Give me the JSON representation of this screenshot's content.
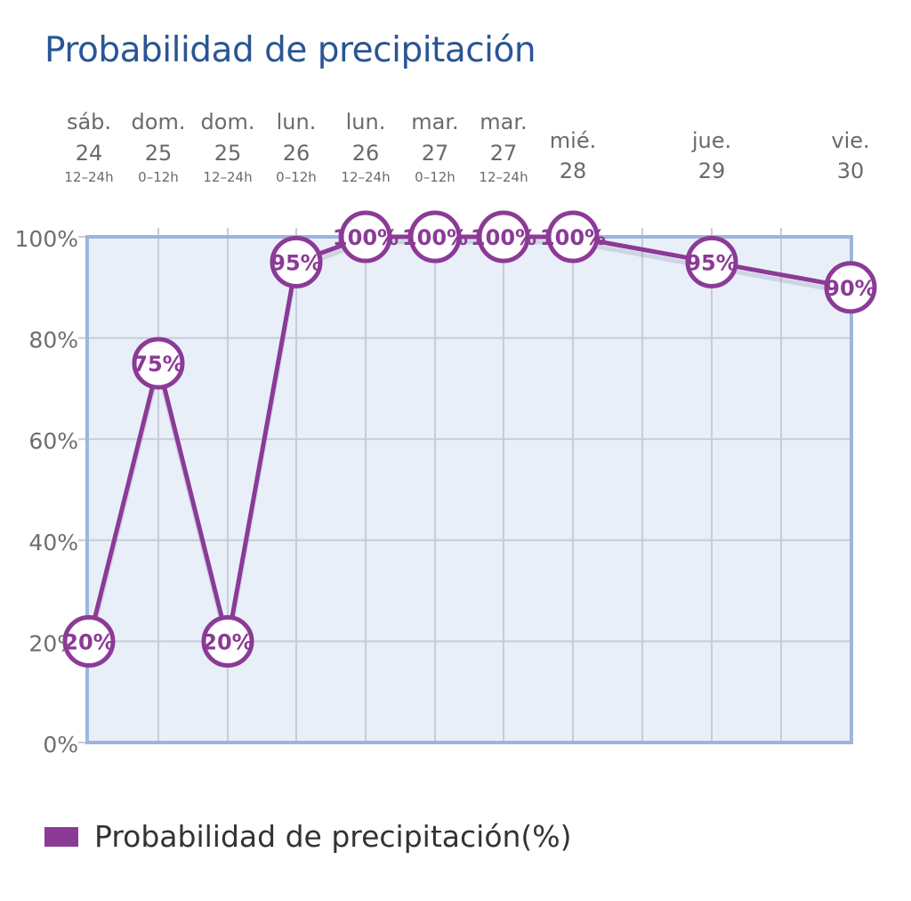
{
  "title": "Probabilidad de precipitación",
  "chart_data": {
    "type": "line",
    "title": "Probabilidad de precipitación",
    "columns": [
      {
        "day": "sáb.",
        "date": "24",
        "period": "12–24h"
      },
      {
        "day": "dom.",
        "date": "25",
        "period": "0–12h"
      },
      {
        "day": "dom.",
        "date": "25",
        "period": "12–24h"
      },
      {
        "day": "lun.",
        "date": "26",
        "period": "0–12h"
      },
      {
        "day": "lun.",
        "date": "26",
        "period": "12–24h"
      },
      {
        "day": "mar.",
        "date": "27",
        "period": "0–12h"
      },
      {
        "day": "mar.",
        "date": "27",
        "period": "12–24h"
      },
      {
        "day": "mié.",
        "date": "28",
        "period": ""
      },
      {
        "day": "jue.",
        "date": "29",
        "period": ""
      },
      {
        "day": "vie.",
        "date": "30",
        "period": ""
      }
    ],
    "series": [
      {
        "name": "Probabilidad de precipitación(%)",
        "color": "#8b3a96",
        "values": [
          20,
          75,
          20,
          95,
          100,
          100,
          100,
          100,
          95,
          90
        ],
        "labels": [
          "20%",
          "75%",
          "20%",
          "95%",
          "100%",
          "100%",
          "100%",
          "100%",
          "95%",
          "90%"
        ]
      }
    ],
    "yticks": [
      "0%",
      "20%",
      "40%",
      "60%",
      "80%",
      "100%"
    ],
    "ylim": [
      0,
      100
    ],
    "grid": true,
    "legend": "bottom-left",
    "plot_color": "#e9eff9",
    "frame_color": "#9db5de"
  },
  "legend_label": "Probabilidad de precipitación(%)"
}
